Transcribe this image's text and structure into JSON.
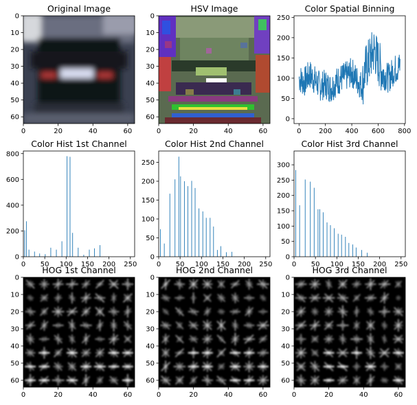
{
  "colors": {
    "line": "#1f77b4",
    "bar": "#1f77b4",
    "axes": "#000000",
    "background": "#ffffff"
  },
  "chart_data": [
    {
      "type": "image",
      "title": "Original Image",
      "xticks": [
        0,
        20,
        40,
        60
      ],
      "yticks": [
        0,
        10,
        20,
        30,
        40,
        50,
        60
      ],
      "xlim": [
        0,
        64
      ],
      "ylim": [
        64,
        0
      ],
      "description_colors": {
        "background": "#3a4050",
        "vehicle": "#111318",
        "plate": "#d0d4ec",
        "taillights": "#c83c3c"
      }
    },
    {
      "type": "image",
      "title": "HSV Image",
      "xticks": [
        0,
        20,
        40,
        60
      ],
      "yticks": [
        0,
        10,
        20,
        30,
        40,
        50,
        60
      ],
      "xlim": [
        0,
        64
      ],
      "ylim": [
        64,
        0
      ]
    },
    {
      "type": "line",
      "title": "Color Spatial Binning",
      "xticks": [
        0,
        200,
        400,
        600,
        800
      ],
      "yticks": [
        0,
        50,
        100,
        150,
        200,
        250
      ],
      "xlim": [
        -38,
        806
      ],
      "ylim": [
        -12,
        254
      ],
      "series": [
        {
          "x_range": [
            0,
            767
          ],
          "profile": [
            [
              0,
              100
            ],
            [
              40,
              90
            ],
            [
              80,
              110
            ],
            [
              120,
              95
            ],
            [
              160,
              80
            ],
            [
              200,
              85
            ],
            [
              240,
              75
            ],
            [
              280,
              90
            ],
            [
              320,
              100
            ],
            [
              360,
              105
            ],
            [
              400,
              115
            ],
            [
              440,
              95
            ],
            [
              480,
              80
            ],
            [
              500,
              120
            ],
            [
              540,
              150
            ],
            [
              570,
              170
            ],
            [
              600,
              140
            ],
            [
              640,
              110
            ],
            [
              680,
              100
            ],
            [
              720,
              120
            ],
            [
              767,
              130
            ]
          ]
        }
      ]
    },
    {
      "type": "bar",
      "title": "Color Hist 1st Channel",
      "xticks": [
        0,
        50,
        100,
        150,
        200,
        250
      ],
      "yticks": [
        0,
        200,
        400,
        600,
        800
      ],
      "xlim": [
        0,
        260
      ],
      "ylim": [
        0,
        820
      ],
      "bar_width": 1.3,
      "x": [
        3,
        7,
        13,
        26,
        38,
        51,
        64,
        77,
        90,
        102,
        109,
        115,
        128,
        141,
        154,
        166,
        179
      ],
      "values": [
        205,
        275,
        55,
        40,
        25,
        20,
        70,
        55,
        120,
        780,
        775,
        185,
        70,
        15,
        55,
        65,
        90
      ]
    },
    {
      "type": "bar",
      "title": "Color Hist 2nd Channel",
      "xticks": [
        0,
        50,
        100,
        150,
        200,
        250
      ],
      "yticks": [
        0,
        50,
        100,
        150,
        200,
        250
      ],
      "xlim": [
        0,
        260
      ],
      "ylim": [
        0,
        280
      ],
      "bar_width": 1.3,
      "x": [
        4,
        13,
        26,
        38,
        47,
        51,
        60,
        68,
        77,
        85,
        94,
        103,
        111,
        120,
        128,
        137,
        145,
        158,
        171
      ],
      "values": [
        73,
        35,
        167,
        205,
        265,
        213,
        200,
        187,
        201,
        182,
        128,
        120,
        103,
        103,
        80,
        18,
        28,
        12,
        13
      ]
    },
    {
      "type": "bar",
      "title": "Color Hist 3rd Channel",
      "xticks": [
        0,
        50,
        100,
        150,
        200,
        250
      ],
      "yticks": [
        0,
        50,
        100,
        150,
        200,
        250,
        300
      ],
      "xlim": [
        0,
        260
      ],
      "ylim": [
        0,
        345
      ],
      "bar_width": 1.3,
      "x": [
        4,
        13,
        26,
        38,
        47,
        56,
        60,
        68,
        77,
        85,
        94,
        103,
        111,
        120,
        128,
        137,
        145,
        158,
        171
      ],
      "values": [
        283,
        168,
        252,
        245,
        225,
        155,
        155,
        145,
        112,
        103,
        93,
        75,
        72,
        65,
        45,
        40,
        30,
        22,
        13
      ]
    },
    {
      "type": "image",
      "title": "HOG 1st Channel",
      "xticks": [
        0,
        20,
        40,
        60
      ],
      "yticks": [
        0,
        10,
        20,
        30,
        40,
        50,
        60
      ],
      "xlim": [
        0,
        64
      ],
      "ylim": [
        64,
        0
      ],
      "grid_cells": 8
    },
    {
      "type": "image",
      "title": "HOG 2nd Channel",
      "xticks": [
        0,
        20,
        40,
        60
      ],
      "yticks": [
        0,
        10,
        20,
        30,
        40,
        50,
        60
      ],
      "xlim": [
        0,
        64
      ],
      "ylim": [
        64,
        0
      ],
      "grid_cells": 8
    },
    {
      "type": "image",
      "title": "HOG 3rd Channel",
      "xticks": [
        0,
        20,
        40,
        60
      ],
      "yticks": [
        0,
        10,
        20,
        30,
        40,
        50,
        60
      ],
      "xlim": [
        0,
        64
      ],
      "ylim": [
        64,
        0
      ],
      "grid_cells": 8
    }
  ]
}
